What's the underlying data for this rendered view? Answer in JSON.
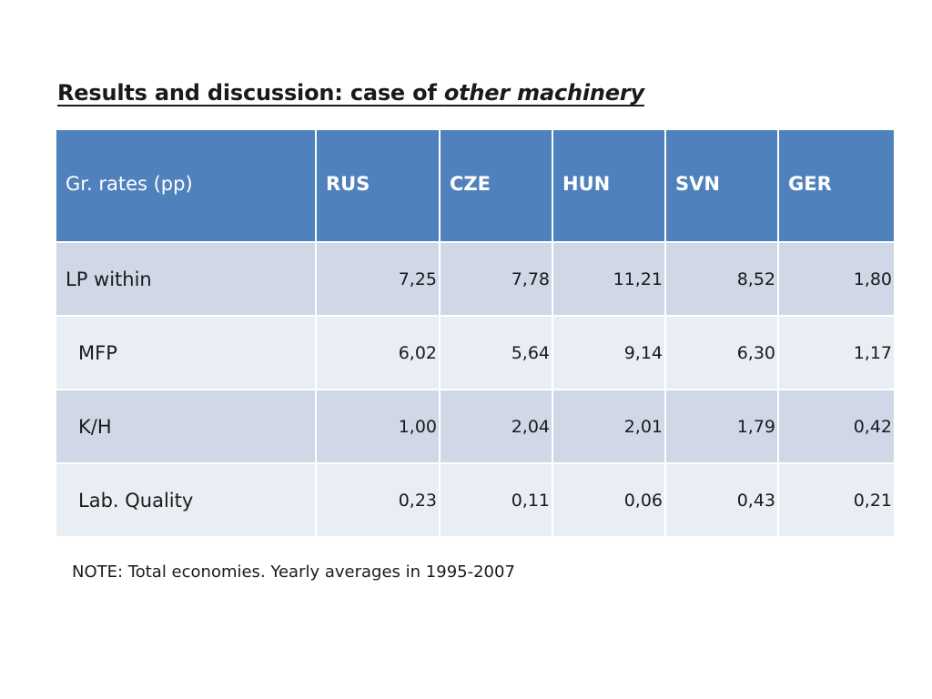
{
  "title": {
    "prefix": "Results and discussion: case of ",
    "emphasis": "other machinery"
  },
  "table": {
    "headers": [
      "Gr. rates (pp)",
      "RUS",
      "CZE",
      "HUN",
      "SVN",
      "GER"
    ],
    "rows": [
      {
        "label": "LP within",
        "values": [
          "7,25",
          "7,78",
          "11,21",
          "8,52",
          "1,80"
        ]
      },
      {
        "label": "MFP",
        "values": [
          "6,02",
          "5,64",
          "9,14",
          "6,30",
          "1,17"
        ]
      },
      {
        "label": "K/H",
        "values": [
          "1,00",
          "2,04",
          "2,01",
          "1,79",
          "0,42"
        ]
      },
      {
        "label": "Lab. Quality",
        "values": [
          "0,23",
          "0,11",
          "0,06",
          "0,43",
          "0,21"
        ]
      }
    ]
  },
  "note": "NOTE: Total economies. Yearly averages in 1995-2007",
  "colors": {
    "header_bg": "#4f81bd",
    "row_dark": "#d0d8e8",
    "row_light": "#e9edf4"
  }
}
